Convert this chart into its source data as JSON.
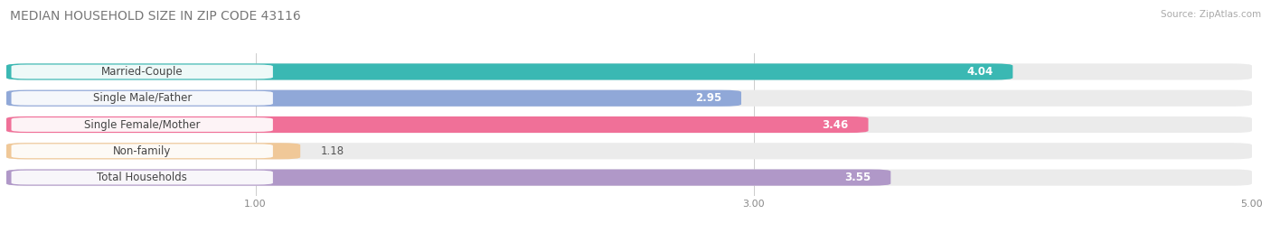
{
  "title": "MEDIAN HOUSEHOLD SIZE IN ZIP CODE 43116",
  "source": "Source: ZipAtlas.com",
  "categories": [
    "Married-Couple",
    "Single Male/Father",
    "Single Female/Mother",
    "Non-family",
    "Total Households"
  ],
  "values": [
    4.04,
    2.95,
    3.46,
    1.18,
    3.55
  ],
  "bar_colors": [
    "#3ab8b3",
    "#90a8d8",
    "#f07098",
    "#f0c898",
    "#b098c8"
  ],
  "bar_bg_colors": [
    "#ebebeb",
    "#ebebeb",
    "#ebebeb",
    "#ebebeb",
    "#ebebeb"
  ],
  "value_colors": [
    "white",
    "#888888",
    "white",
    "#888888",
    "white"
  ],
  "xlim": [
    0,
    5.0
  ],
  "xticks": [
    1.0,
    3.0,
    5.0
  ],
  "bar_height": 0.62,
  "label_fontsize": 8.5,
  "value_fontsize": 8.5,
  "title_fontsize": 10,
  "source_fontsize": 7.5,
  "background_color": "#ffffff"
}
